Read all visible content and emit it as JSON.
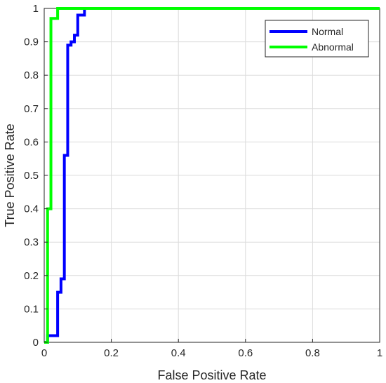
{
  "chart_data": {
    "type": "line",
    "title": "",
    "xlabel": "False Positive Rate",
    "ylabel": "True Positive Rate",
    "xlim": [
      0,
      1
    ],
    "ylim": [
      0,
      1
    ],
    "xticks": [
      0,
      0.2,
      0.4,
      0.6,
      0.8,
      1
    ],
    "xtick_labels": [
      "0",
      "0.2",
      "0.4",
      "0.6",
      "0.8",
      "1"
    ],
    "yticks": [
      0,
      0.1,
      0.2,
      0.3,
      0.4,
      0.5,
      0.6,
      0.7,
      0.8,
      0.9,
      1
    ],
    "ytick_labels": [
      "0",
      "0.1",
      "0.2",
      "0.3",
      "0.4",
      "0.5",
      "0.6",
      "0.7",
      "0.8",
      "0.9",
      "1"
    ],
    "grid": true,
    "legend_position": "top-right",
    "series": [
      {
        "name": "Normal",
        "color": "#0000ff",
        "x": [
          0,
          0.01,
          0.01,
          0.04,
          0.04,
          0.05,
          0.05,
          0.06,
          0.06,
          0.07,
          0.07,
          0.08,
          0.08,
          0.09,
          0.09,
          0.1,
          0.1,
          0.12,
          0.12,
          1
        ],
        "y": [
          0,
          0,
          0.02,
          0.02,
          0.15,
          0.15,
          0.19,
          0.19,
          0.56,
          0.56,
          0.89,
          0.89,
          0.9,
          0.9,
          0.92,
          0.92,
          0.98,
          0.98,
          1,
          1
        ]
      },
      {
        "name": "Abnormal",
        "color": "#00ff00",
        "x": [
          0,
          0.01,
          0.01,
          0.02,
          0.02,
          0.04,
          0.04,
          1
        ],
        "y": [
          0,
          0,
          0.4,
          0.4,
          0.97,
          0.97,
          1,
          1
        ]
      }
    ]
  }
}
